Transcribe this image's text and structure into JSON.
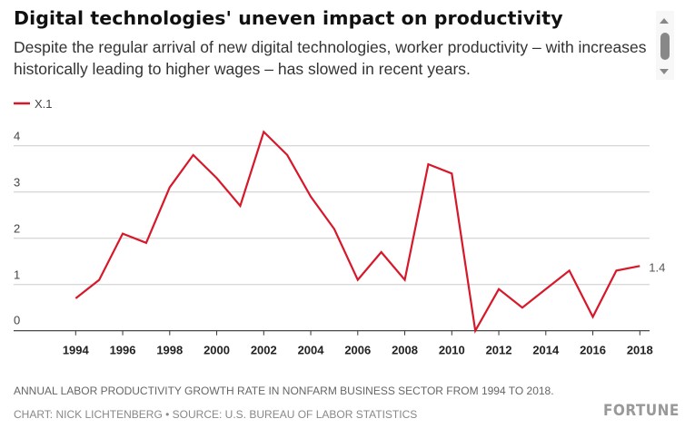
{
  "header": {
    "title": "Digital technologies' uneven impact on productivity",
    "subtitle": "Despite the regular arrival of new digital technologies, worker productivity – with increases historically leading to higher wages – has slowed in recent years."
  },
  "chart_data": {
    "type": "line",
    "title": "Digital technologies' uneven impact on productivity",
    "xlabel": "",
    "ylabel": "",
    "x": [
      1994,
      1995,
      1996,
      1997,
      1998,
      1999,
      2000,
      2001,
      2002,
      2003,
      2004,
      2005,
      2006,
      2007,
      2008,
      2009,
      2010,
      2011,
      2012,
      2013,
      2014,
      2015,
      2016,
      2017,
      2018
    ],
    "x_ticks": [
      "1994",
      "1996",
      "1998",
      "2000",
      "2002",
      "2004",
      "2006",
      "2008",
      "2010",
      "2012",
      "2014",
      "2016",
      "2018"
    ],
    "y_ticks": [
      "0",
      "1",
      "2",
      "3",
      "4"
    ],
    "ylim": [
      0,
      4.3
    ],
    "grid": true,
    "legend": "top-left",
    "series": [
      {
        "name": "X.1",
        "color": "#d7182a",
        "values": [
          0.7,
          1.1,
          2.1,
          1.9,
          3.1,
          3.8,
          3.3,
          2.7,
          4.3,
          3.8,
          2.9,
          2.2,
          1.1,
          1.7,
          1.1,
          3.6,
          3.4,
          0.0,
          0.9,
          0.5,
          0.9,
          1.3,
          0.3,
          1.3,
          1.4
        ]
      }
    ],
    "end_label": "1.4"
  },
  "footer": {
    "note": "ANNUAL LABOR PRODUCTIVITY GROWTH RATE IN NONFARM BUSINESS SECTOR FROM 1994 TO 2018.",
    "credit": "CHART: NICK LICHTENBERG • SOURCE: U.S. BUREAU OF LABOR STATISTICS",
    "logo": "FORTUNE"
  }
}
